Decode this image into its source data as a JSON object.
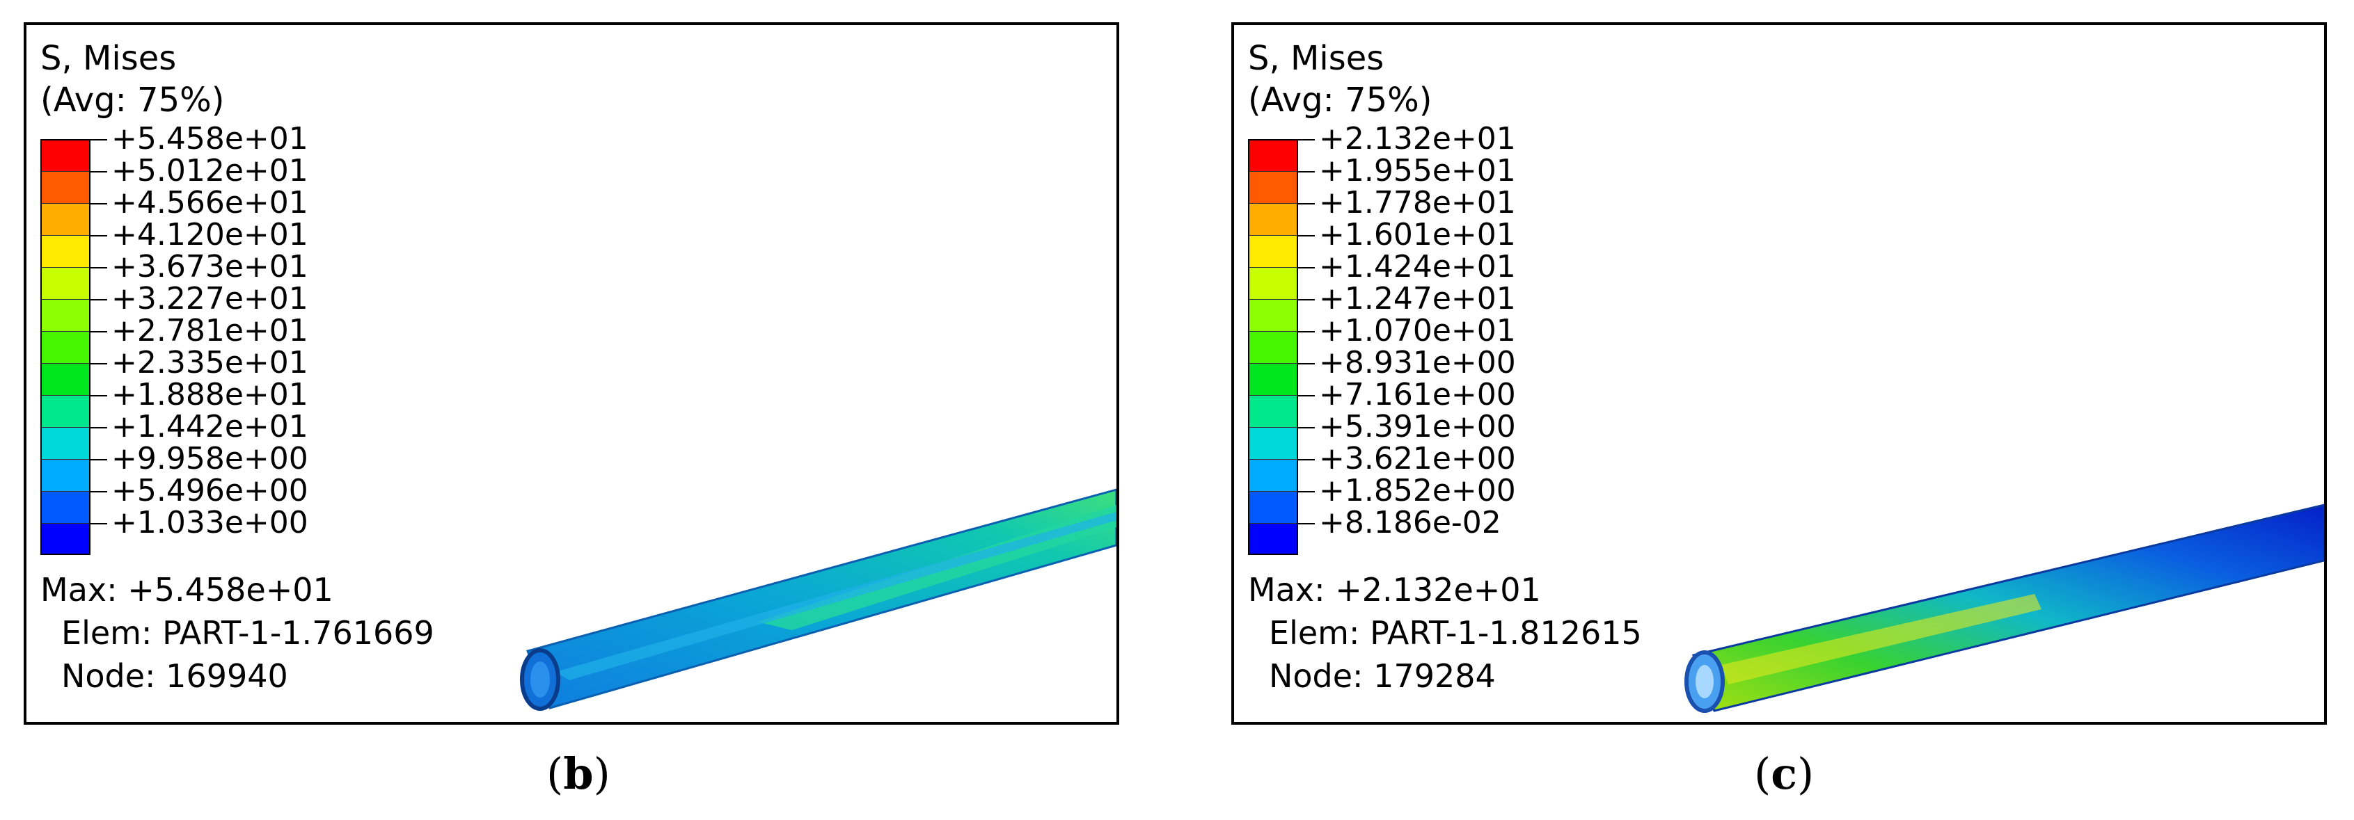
{
  "panels": [
    {
      "id": "b",
      "legend": {
        "title": "S, Mises",
        "averaging": "(Avg: 75%)",
        "values": [
          "+5.458e+01",
          "+5.012e+01",
          "+4.566e+01",
          "+4.120e+01",
          "+3.673e+01",
          "+3.227e+01",
          "+2.781e+01",
          "+2.335e+01",
          "+1.888e+01",
          "+1.442e+01",
          "+9.958e+00",
          "+5.496e+00",
          "+1.033e+00"
        ],
        "colors": [
          "#ff0000",
          "#ff5a00",
          "#ffae00",
          "#ffea00",
          "#c8ff00",
          "#8cff00",
          "#46f500",
          "#00e61e",
          "#00e88c",
          "#00d9d9",
          "#00aaff",
          "#005aff",
          "#0000ff"
        ]
      },
      "max_label": "Max: +5.458e+01",
      "elem_label": "Elem: PART-1-1.761669",
      "node_label": "Node: 169940",
      "caption_open": "(",
      "caption_letter": "b",
      "caption_close": ")"
    },
    {
      "id": "c",
      "legend": {
        "title": "S, Mises",
        "averaging": "(Avg: 75%)",
        "values": [
          "+2.132e+01",
          "+1.955e+01",
          "+1.778e+01",
          "+1.601e+01",
          "+1.424e+01",
          "+1.247e+01",
          "+1.070e+01",
          "+8.931e+00",
          "+7.161e+00",
          "+5.391e+00",
          "+3.621e+00",
          "+1.852e+00",
          "+8.186e-02"
        ],
        "colors": [
          "#ff0000",
          "#ff5a00",
          "#ffae00",
          "#ffea00",
          "#c8ff00",
          "#8cff00",
          "#46f500",
          "#00e61e",
          "#00e88c",
          "#00d9d9",
          "#00aaff",
          "#005aff",
          "#0000ff"
        ]
      },
      "max_label": "Max: +2.132e+01",
      "elem_label": "Elem: PART-1-1.812615",
      "node_label": "Node: 179284",
      "caption_open": "(",
      "caption_letter": "c",
      "caption_close": ")"
    }
  ]
}
